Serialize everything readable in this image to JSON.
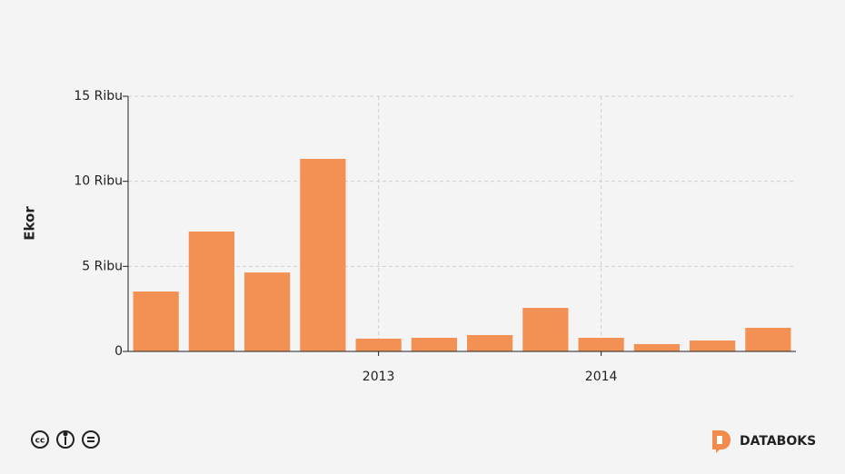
{
  "chart_data": {
    "type": "bar",
    "y_label": "Ekor",
    "categories": [
      null,
      null,
      null,
      null,
      "2013",
      null,
      null,
      null,
      "2014",
      null,
      null,
      null
    ],
    "values": [
      3520,
      7050,
      4640,
      11320,
      750,
      800,
      960,
      2560,
      800,
      430,
      640,
      1390
    ],
    "color": "#f28b4c",
    "ylim": [
      0,
      15000
    ],
    "yticks": [
      0,
      {
        "value": 5000,
        "label": "5 Ribu"
      },
      {
        "value": 10000,
        "label": "10 Ribu"
      },
      {
        "value": 15000,
        "label": "15 Ribu"
      }
    ],
    "grid": true
  },
  "brand": "DATABOKS"
}
